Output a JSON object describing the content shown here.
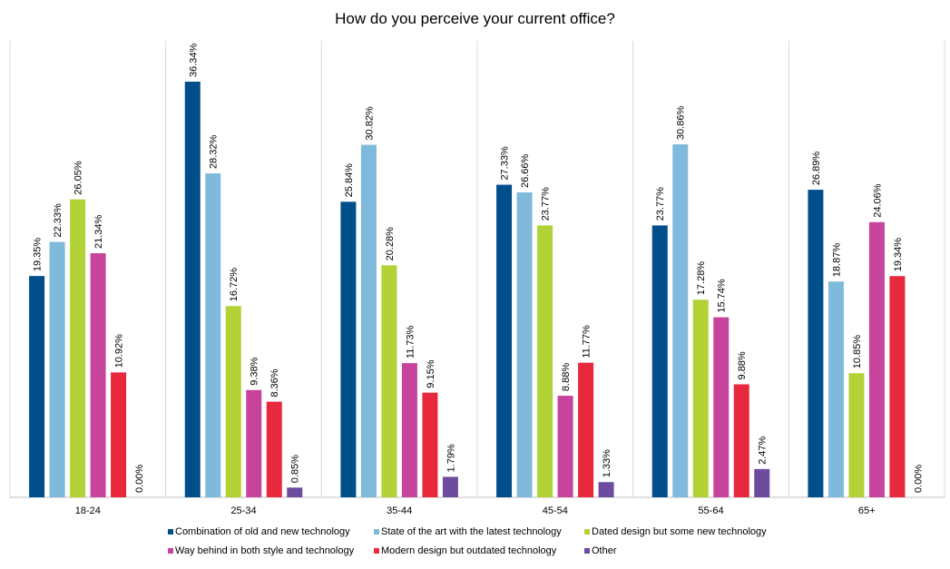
{
  "chart_data": {
    "type": "bar",
    "title": "How do you perceive your current office?",
    "categories": [
      "18-24",
      "25-34",
      "35-44",
      "45-54",
      "55-64",
      "65+"
    ],
    "ylim": [
      0,
      40
    ],
    "grid": false,
    "legend_position": "bottom",
    "series": [
      {
        "name": "Combination of old and new technology",
        "color": "#004f8b",
        "values": [
          19.35,
          36.34,
          25.84,
          27.33,
          23.77,
          26.89
        ],
        "labels": [
          "19.35%",
          "36.34%",
          "25.84%",
          "27.33%",
          "23.77%",
          "26.89%"
        ]
      },
      {
        "name": "State of the art with the latest technology",
        "color": "#7fbadc",
        "values": [
          22.33,
          28.32,
          30.82,
          26.66,
          30.86,
          18.87
        ],
        "labels": [
          "22.33%",
          "28.32%",
          "30.82%",
          "26.66%",
          "30.86%",
          "18.87%"
        ]
      },
      {
        "name": "Dated design but some new technology",
        "color": "#b2d235",
        "values": [
          26.05,
          16.72,
          20.28,
          23.77,
          17.28,
          10.85
        ],
        "labels": [
          "26.05%",
          "16.72%",
          "20.28%",
          "23.77%",
          "17.28%",
          "10.85%"
        ]
      },
      {
        "name": "Way behind in both style and technology",
        "color": "#c6449b",
        "values": [
          21.34,
          9.38,
          11.73,
          8.88,
          15.74,
          24.06
        ],
        "labels": [
          "21.34%",
          "9.38%",
          "11.73%",
          "8.88%",
          "15.74%",
          "24.06%"
        ]
      },
      {
        "name": "Modern design but outdated technology",
        "color": "#e8293d",
        "values": [
          10.92,
          8.36,
          9.15,
          11.77,
          9.88,
          19.34
        ],
        "labels": [
          "10.92%",
          "8.36%",
          "9.15%",
          "11.77%",
          "9.88%",
          "19.34%"
        ]
      },
      {
        "name": "Other",
        "color": "#6d4b9e",
        "values": [
          0.0,
          0.85,
          1.79,
          1.33,
          2.47,
          0.0
        ],
        "labels": [
          "0.00%",
          "0.85%",
          "1.79%",
          "1.33%",
          "2.47%",
          "0.00%"
        ]
      }
    ]
  }
}
